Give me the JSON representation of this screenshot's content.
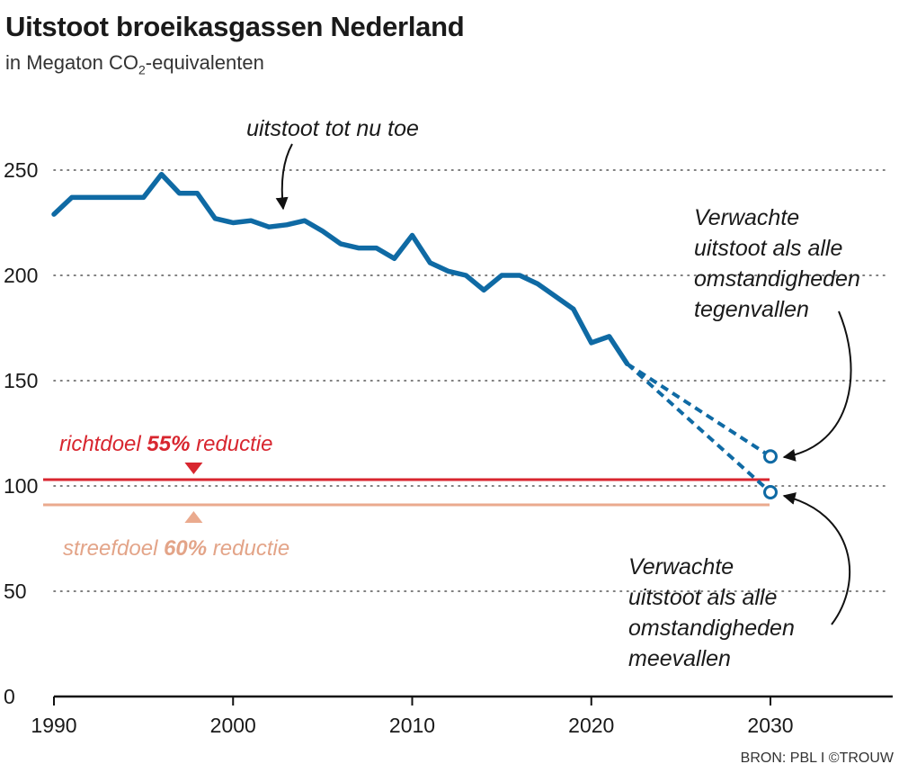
{
  "title": "Uitstoot broeikasgassen Nederland",
  "subtitle_prefix": "in Megaton CO",
  "subtitle_sub": "2",
  "subtitle_suffix": "-equivalenten",
  "source": "BRON: PBL I ©TROUW",
  "annotations": {
    "history": "uitstoot tot nu toe",
    "target55_pre": "richtdoel ",
    "target55_bold": "55%",
    "target55_post": " reductie",
    "target60_pre": "streefdoel ",
    "target60_bold": "60%",
    "target60_post": " reductie",
    "worse": [
      "Verwachte",
      "uitstoot als alle",
      "omstandigheden",
      "tegenvallen"
    ],
    "better": [
      "Verwachte",
      "uitstoot als alle",
      "omstandigheden",
      "meevallen"
    ]
  },
  "colors": {
    "line": "#0f6aa4",
    "target55": "#d8262f",
    "target60": "#eaaa8e",
    "grid": "#555555",
    "text": "#1a1a1a"
  },
  "chart_data": {
    "type": "line",
    "xlim": [
      1990,
      2030
    ],
    "ylim": [
      0,
      250
    ],
    "x_ticks": [
      1990,
      2000,
      2010,
      2020,
      2030
    ],
    "y_ticks": [
      0,
      50,
      100,
      150,
      200,
      250
    ],
    "grid": "dotted horizontal",
    "series": [
      {
        "style": "solid",
        "x": [
          1990,
          1991,
          1992,
          1993,
          1994,
          1995,
          1996,
          1997,
          1998,
          1999,
          2000,
          2001,
          2002,
          2003,
          2004,
          2005,
          2006,
          2007,
          2008,
          2009,
          2010,
          2011,
          2012,
          2013,
          2014,
          2015,
          2016,
          2017,
          2018,
          2019,
          2020,
          2021,
          2022
        ],
        "y": [
          229,
          237,
          237,
          237,
          237,
          237,
          248,
          239,
          239,
          227,
          225,
          226,
          223,
          224,
          226,
          221,
          215,
          213,
          213,
          208,
          219,
          206,
          202,
          200,
          193,
          200,
          200,
          196,
          190,
          184,
          168,
          171,
          158
        ]
      },
      {
        "style": "dashed",
        "x": [
          2022,
          2030
        ],
        "y": [
          158,
          114
        ],
        "end_marker": "circle"
      },
      {
        "style": "dashed",
        "x": [
          2022,
          2030
        ],
        "y": [
          158,
          97
        ],
        "end_marker": "circle"
      }
    ],
    "reference_lines": [
      {
        "y": 103,
        "color": "target55",
        "marker": "triangle-down",
        "marker_x": 1997.8
      },
      {
        "y": 91,
        "color": "target60",
        "marker": "triangle-up",
        "marker_x": 1997.8
      }
    ]
  }
}
